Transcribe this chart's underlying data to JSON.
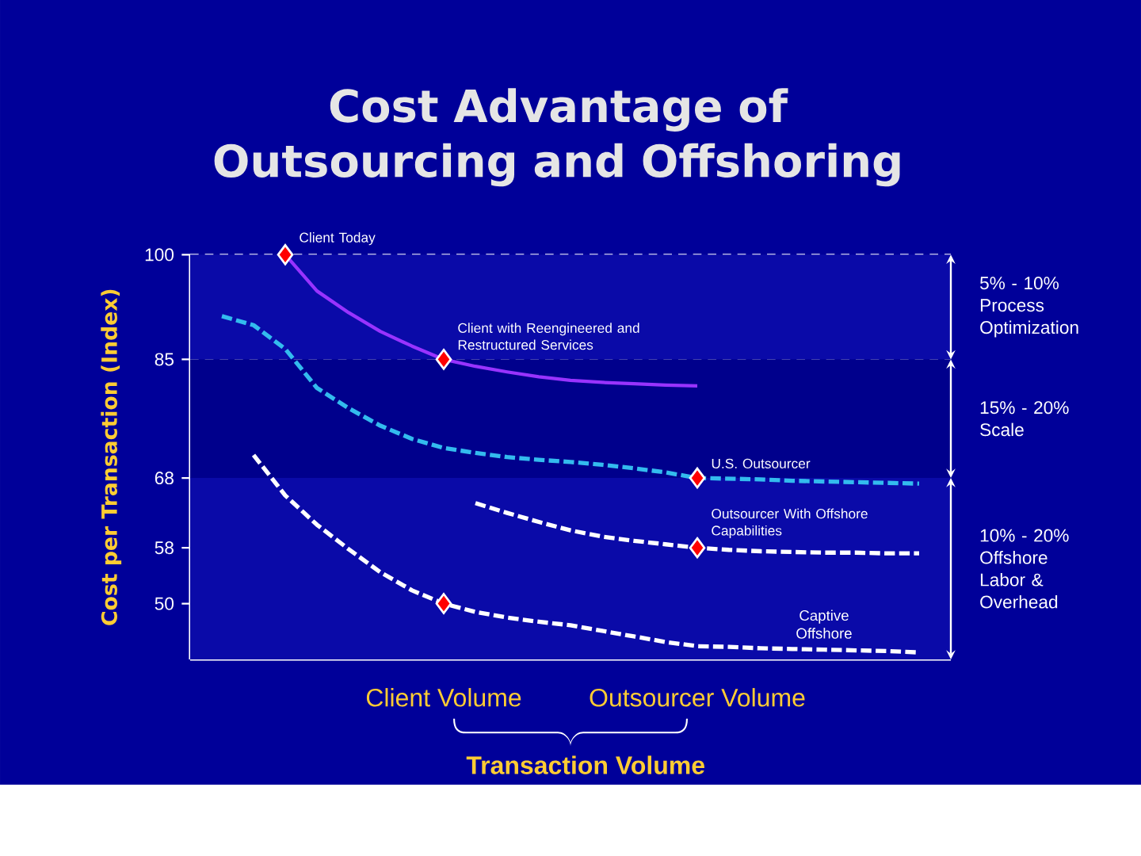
{
  "chart_data": {
    "type": "line",
    "title": "Cost Advantage of Outsourcing and Offshoring",
    "xlabel": "Transaction Volume",
    "ylabel": "Cost per Transaction (Index)",
    "categories": [
      null,
      null,
      null,
      null,
      null,
      null,
      null,
      null,
      "Client Volume",
      null,
      null,
      null,
      null,
      null,
      null,
      null,
      "Outsourcer Volume",
      null,
      null,
      null,
      null,
      null,
      null,
      null,
      null
    ],
    "ylim": [
      42,
      100
    ],
    "yticks": [
      100,
      85,
      68,
      58,
      50
    ],
    "grid": true,
    "series": [
      {
        "color": "#9933ff",
        "line_style": "solid",
        "values": [
          null,
          null,
          null,
          100,
          94.8,
          91.7,
          89.0,
          86.9,
          85,
          84.0,
          83.2,
          82.5,
          82.0,
          81.7,
          81.5,
          81.3,
          81.2,
          null,
          null,
          null,
          null,
          null,
          null,
          null,
          null
        ]
      },
      {
        "color": "#33bbee",
        "line_style": "dashed",
        "values": [
          null,
          91.2,
          89.9,
          86.5,
          80.9,
          78.0,
          75.5,
          73.6,
          72.3,
          71.6,
          71.0,
          70.6,
          70.3,
          69.9,
          69.4,
          68.8,
          68,
          67.9,
          67.8,
          67.6,
          67.5,
          67.4,
          67.3,
          67.2,
          null
        ]
      },
      {
        "color": "#ffffff",
        "line_style": "dashed",
        "values": [
          null,
          null,
          null,
          null,
          null,
          null,
          null,
          null,
          null,
          64.4,
          63.0,
          61.7,
          60.5,
          59.6,
          59.0,
          58.5,
          58,
          57.7,
          57.5,
          57.4,
          57.3,
          57.3,
          57.2,
          57.2,
          null
        ]
      },
      {
        "name": "Captive Offshore",
        "color": "#ffffff",
        "line_style": "dashed",
        "values": [
          null,
          null,
          71.3,
          65.5,
          61.3,
          57.8,
          54.5,
          51.9,
          50,
          48.8,
          48.0,
          47.4,
          46.9,
          46.1,
          45.3,
          44.5,
          43.9,
          43.8,
          43.6,
          43.5,
          43.4,
          43.3,
          43.2,
          43.0,
          null
        ]
      },
      {
        "type": "scatter",
        "name": "Client Today",
        "color": "#ff0000",
        "marker": "diamond",
        "values": [
          null,
          null,
          null,
          100,
          null,
          null,
          null,
          null,
          null,
          null,
          null,
          null,
          null,
          null,
          null,
          null,
          null,
          null,
          null,
          null,
          null,
          null,
          null,
          null,
          null
        ]
      },
      {
        "type": "scatter",
        "name": "Client with Reengineered and Restructured Services",
        "color": "#ff0000",
        "marker": "diamond",
        "values": [
          null,
          null,
          null,
          null,
          null,
          null,
          null,
          null,
          85,
          null,
          null,
          null,
          null,
          null,
          null,
          null,
          null,
          null,
          null,
          null,
          null,
          null,
          null,
          null,
          null
        ]
      },
      {
        "type": "scatter",
        "name": "U.S. Outsourcer",
        "color": "#ff0000",
        "marker": "diamond",
        "values": [
          null,
          null,
          null,
          null,
          null,
          null,
          null,
          null,
          null,
          null,
          null,
          null,
          null,
          null,
          null,
          null,
          68,
          null,
          null,
          null,
          null,
          null,
          null,
          null,
          null
        ]
      },
      {
        "type": "scatter",
        "name": "Outsourcer With Offshore Capabilities",
        "color": "#ff0000",
        "marker": "diamond",
        "values": [
          null,
          null,
          null,
          null,
          null,
          null,
          null,
          null,
          null,
          null,
          null,
          null,
          null,
          null,
          null,
          null,
          58,
          null,
          null,
          null,
          null,
          null,
          null,
          null,
          null
        ]
      },
      {
        "type": "scatter",
        "color": "#ff0000",
        "marker": "diamond",
        "values": [
          null,
          null,
          null,
          null,
          null,
          null,
          null,
          null,
          50,
          null,
          null,
          null,
          null,
          null,
          null,
          null,
          null,
          null,
          null,
          null,
          null,
          null,
          null,
          null,
          null
        ]
      }
    ],
    "bands": [
      {
        "axis": "y",
        "from": 85,
        "to": 100,
        "label": "5% - 10% Process Optimization",
        "color": "#0a0aa8"
      },
      {
        "axis": "y",
        "from": 68,
        "to": 85,
        "label": "15% - 20% Scale",
        "color": "#00008c"
      },
      {
        "axis": "y",
        "from": 42,
        "to": 68,
        "label": "10% - 20% Offshore Labor & Overhead",
        "color": "#0a0aa8"
      }
    ]
  }
}
